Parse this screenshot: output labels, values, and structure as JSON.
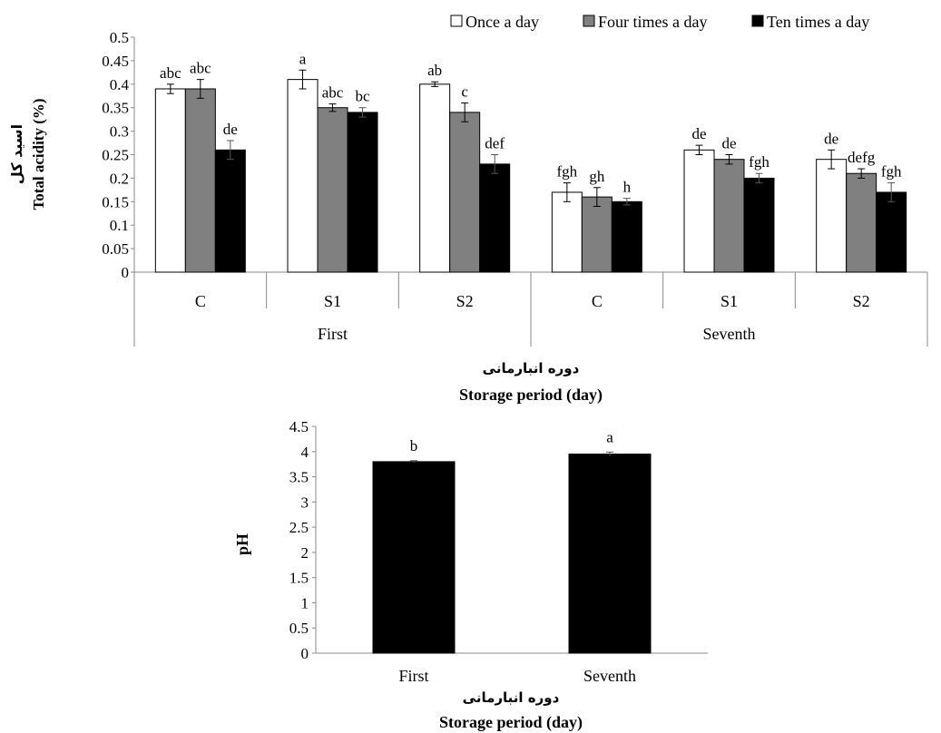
{
  "chart_data": [
    {
      "type": "bar",
      "ylabel_fa": "اسید کل",
      "ylabel": "Total acidity (%)",
      "xlabel_fa": "دوره انبارمانی",
      "xlabel": "Storage period (day)",
      "ylim": [
        0,
        0.5
      ],
      "yticks": [
        "0",
        "0.05",
        "0.1",
        "0.15",
        "0.2",
        "0.25",
        "0.3",
        "0.35",
        "0.4",
        "0.45",
        "0.5"
      ],
      "groups": [
        "First",
        "Seventh"
      ],
      "categories": [
        "C",
        "S1",
        "S2",
        "C",
        "S1",
        "S2"
      ],
      "legend_position": "top-right",
      "series": [
        {
          "name": "Once a day",
          "color": "#ffffff",
          "values": [
            0.39,
            0.41,
            0.4,
            0.17,
            0.26,
            0.24
          ],
          "errors": [
            0.01,
            0.02,
            0.005,
            0.02,
            0.01,
            0.02
          ],
          "labels": [
            "abc",
            "a",
            "ab",
            "fgh",
            "de",
            "de"
          ]
        },
        {
          "name": "Four times a day",
          "color": "#808080",
          "values": [
            0.39,
            0.35,
            0.34,
            0.16,
            0.24,
            0.21
          ],
          "errors": [
            0.02,
            0.008,
            0.02,
            0.02,
            0.01,
            0.01
          ],
          "labels": [
            "abc",
            "abc",
            "c",
            "gh",
            "de",
            "defg"
          ]
        },
        {
          "name": "Ten times a day",
          "color": "#000000",
          "values": [
            0.26,
            0.34,
            0.23,
            0.15,
            0.2,
            0.17
          ],
          "errors": [
            0.02,
            0.01,
            0.02,
            0.007,
            0.01,
            0.02
          ],
          "labels": [
            "de",
            "bc",
            "def",
            "h",
            "fgh",
            "fgh"
          ]
        }
      ]
    },
    {
      "type": "bar",
      "ylabel": "pH",
      "xlabel_fa": "دوره انبارمانی",
      "xlabel": "Storage period (day)",
      "ylim": [
        0,
        4.5
      ],
      "yticks": [
        "0",
        "0.5",
        "1",
        "1.5",
        "2",
        "2.5",
        "3",
        "3.5",
        "4",
        "4.5"
      ],
      "categories": [
        "First",
        "Seventh"
      ],
      "series": [
        {
          "color": "#000000",
          "values": [
            3.8,
            3.95
          ],
          "errors": [
            0.02,
            0.04
          ],
          "labels": [
            "b",
            "a"
          ]
        }
      ]
    }
  ]
}
